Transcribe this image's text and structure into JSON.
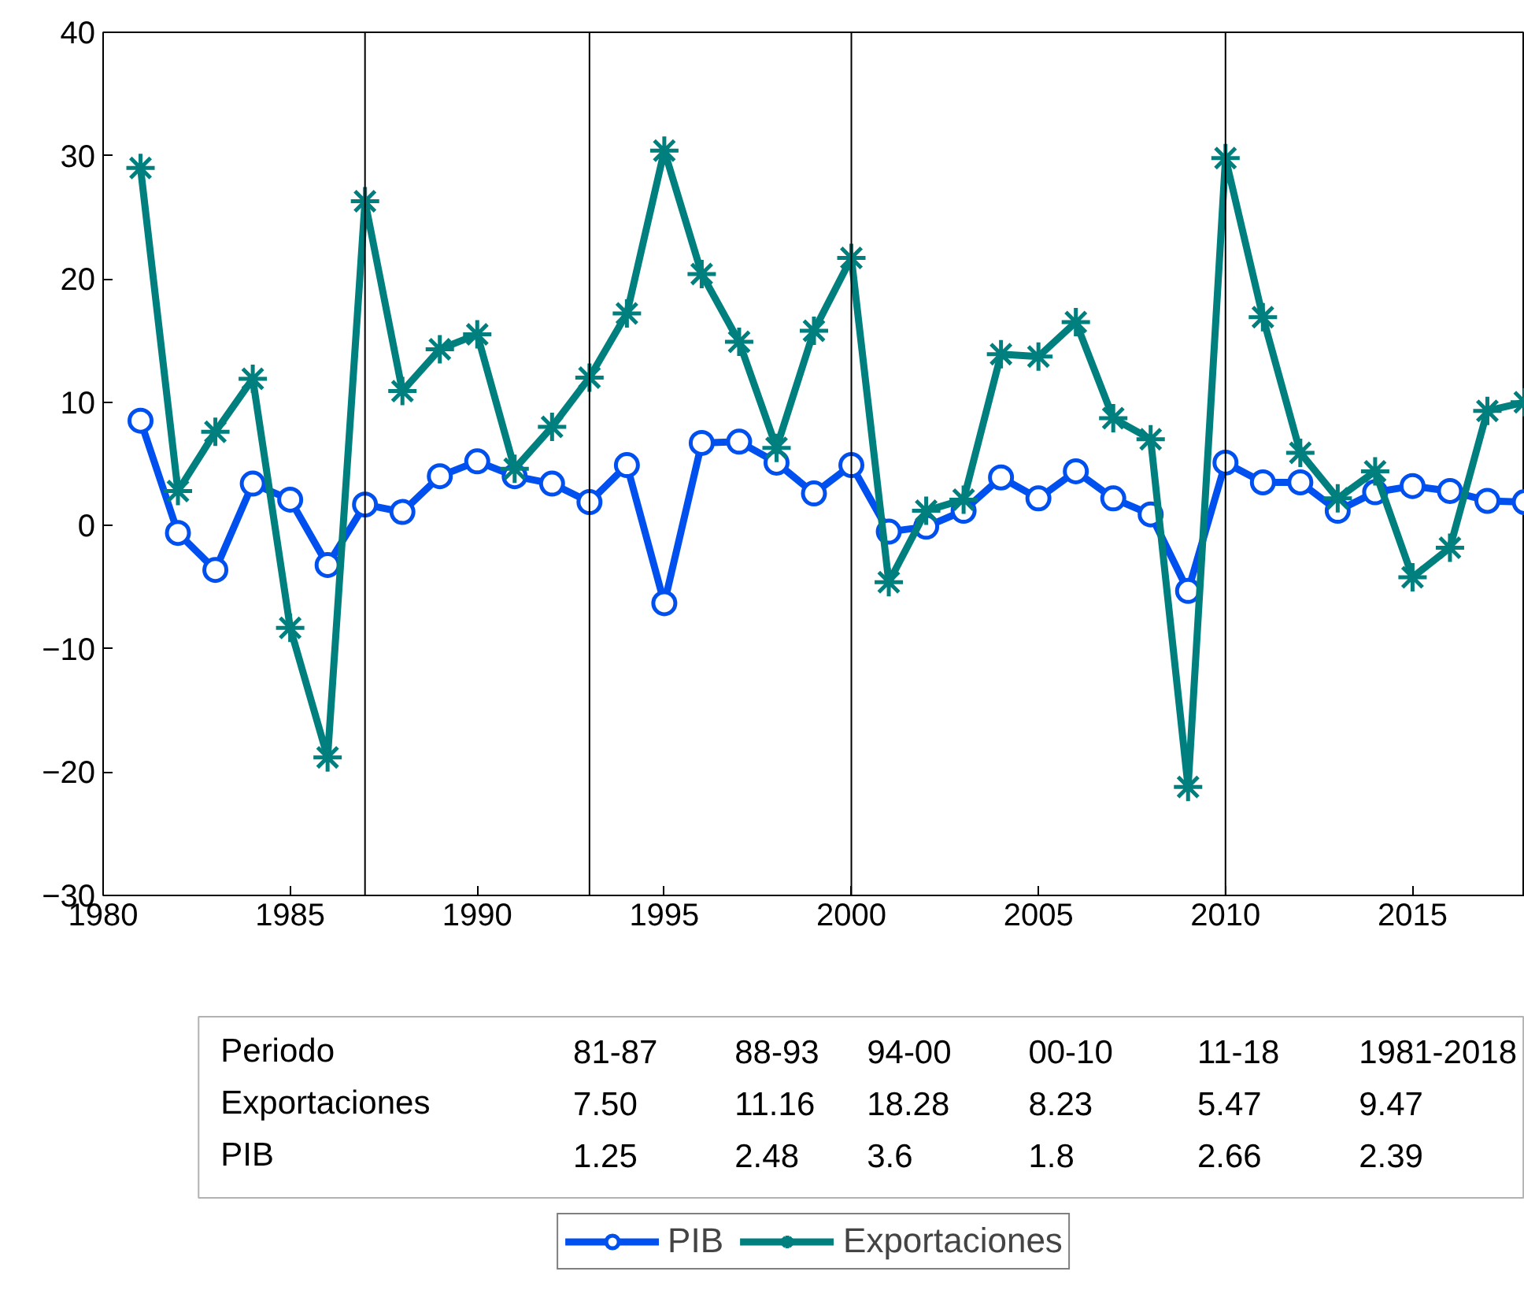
{
  "chart_data": {
    "type": "line",
    "x": [
      1981,
      1982,
      1983,
      1984,
      1985,
      1986,
      1987,
      1988,
      1989,
      1990,
      1991,
      1992,
      1993,
      1994,
      1995,
      1996,
      1997,
      1998,
      1999,
      2000,
      2001,
      2002,
      2003,
      2004,
      2005,
      2006,
      2007,
      2008,
      2009,
      2010,
      2011,
      2012,
      2013,
      2014,
      2015,
      2016,
      2017,
      2018
    ],
    "series": [
      {
        "name": "PIB",
        "color": "#0050f0",
        "marker": "circle",
        "values": [
          8.5,
          -0.6,
          -3.6,
          3.4,
          2.1,
          -3.2,
          1.7,
          1.1,
          4.0,
          5.2,
          4.0,
          3.4,
          1.9,
          4.9,
          -6.3,
          6.7,
          6.8,
          5.1,
          2.6,
          4.9,
          -0.5,
          -0.1,
          1.2,
          3.9,
          2.2,
          4.4,
          2.2,
          0.9,
          -5.3,
          5.1,
          3.5,
          3.5,
          1.2,
          2.7,
          3.2,
          2.8,
          2.0,
          1.9
        ]
      },
      {
        "name": "Exportaciones",
        "color": "#007f7f",
        "marker": "cross",
        "values": [
          29.0,
          2.8,
          7.6,
          11.9,
          -8.3,
          -18.8,
          26.3,
          10.9,
          14.3,
          15.5,
          4.6,
          8.0,
          12.0,
          17.2,
          30.4,
          20.4,
          14.9,
          6.3,
          15.8,
          21.7,
          -4.6,
          1.2,
          2.1,
          13.9,
          13.7,
          16.5,
          8.7,
          7.0,
          -21.2,
          29.8,
          16.9,
          5.9,
          2.2,
          4.4,
          -4.2,
          -1.8,
          9.3,
          10.0
        ]
      }
    ],
    "xlim": [
      1980,
      2018
    ],
    "xticks": [
      1980,
      1985,
      1990,
      1995,
      2000,
      2005,
      2010,
      2015
    ],
    "ylim": [
      -30,
      40
    ],
    "yticks": [
      -30,
      -20,
      -10,
      0,
      10,
      20,
      30,
      40
    ],
    "grid": false,
    "legend": "bottom",
    "line_style": "solid",
    "ref_lines": [
      {
        "axis": "x",
        "value": 1987,
        "color": "#000000"
      },
      {
        "axis": "x",
        "value": 1993,
        "color": "#000000"
      },
      {
        "axis": "x",
        "value": 2000,
        "color": "#000000"
      },
      {
        "axis": "x",
        "value": 2010,
        "color": "#000000"
      }
    ],
    "annotations": [
      "Periodo",
      "81-87",
      "88-93",
      "94-00",
      "00-10",
      "11-18",
      "1981-2018",
      "Exportaciones",
      "7.50",
      "11.16",
      "18.28",
      "8.23",
      "5.47",
      "9.47",
      "PIB",
      "1.25",
      "2.48",
      "3.6",
      "1.8",
      "2.66",
      "2.39"
    ]
  }
}
